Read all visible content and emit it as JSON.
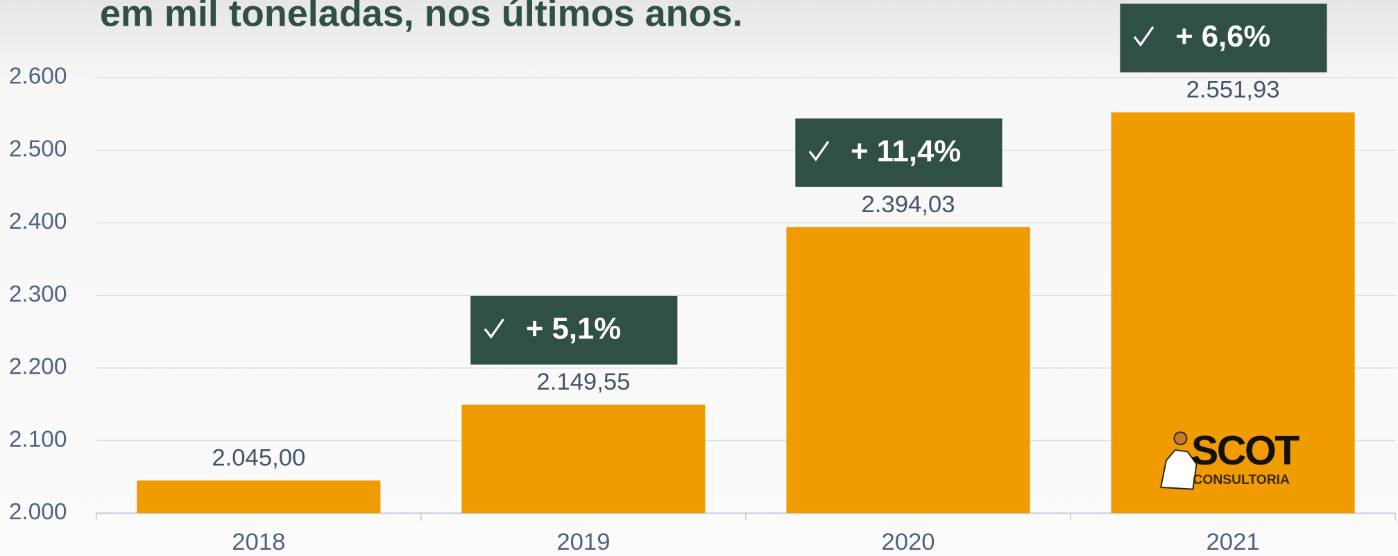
{
  "chart_data": {
    "type": "bar",
    "title": "em mil toneladas, nos últimos anos.",
    "categories": [
      "2018",
      "2019",
      "2020",
      "2021"
    ],
    "values": [
      2045.0,
      2149.55,
      2394.03,
      2551.93
    ],
    "value_labels": [
      "2.045,00",
      "2.149,55",
      "2.394,03",
      "2.551,93"
    ],
    "annotations": [
      null,
      "+ 5,1%",
      "+ 11,4%",
      "+ 6,6%"
    ],
    "color": "#f09b00",
    "annotation_color": "#2f4f47",
    "ylim": [
      2000,
      2600
    ],
    "yticks": [
      {
        "value": 2000,
        "label": "2.000"
      },
      {
        "value": 2100,
        "label": "2.100"
      },
      {
        "value": 2200,
        "label": "2.200"
      },
      {
        "value": 2300,
        "label": "2.300"
      },
      {
        "value": 2400,
        "label": "2.400"
      },
      {
        "value": 2500,
        "label": "2.500"
      },
      {
        "value": 2600,
        "label": "2.600"
      }
    ],
    "grid": true,
    "logo": {
      "name": "SCOT",
      "subtitle": "CONSULTORIA"
    }
  }
}
